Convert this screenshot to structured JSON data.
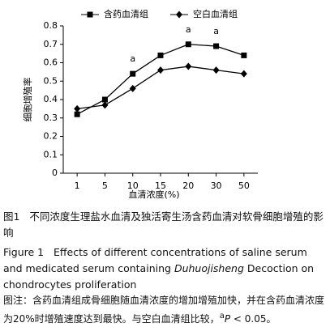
{
  "chart_data": {
    "type": "line",
    "y_label": "细胞增殖率",
    "x_label": "血清浓度(%)",
    "categories": [
      "1",
      "5",
      "10",
      "15",
      "20",
      "30",
      "50"
    ],
    "series": [
      {
        "name": "含药血清组",
        "color": "#000000",
        "marker": "square",
        "values": [
          0.32,
          0.4,
          0.54,
          0.64,
          0.7,
          0.69,
          0.64
        ]
      },
      {
        "name": "空白血清组",
        "color": "#000000",
        "marker": "diamond",
        "values": [
          0.35,
          0.37,
          0.46,
          0.56,
          0.58,
          0.56,
          0.54
        ]
      }
    ],
    "annotations": [
      {
        "text": "a",
        "category": "10"
      },
      {
        "text": "a",
        "category": "20"
      },
      {
        "text": "a",
        "category": "30"
      }
    ],
    "ylim": [
      0,
      0.8
    ],
    "yticks": [
      0,
      0.1,
      0.2,
      0.3,
      0.4,
      0.5,
      0.6,
      0.7,
      0.8
    ],
    "grid": false
  },
  "caption": {
    "cn_label": "图1",
    "cn_text": "不同浓度生理盐水血清及独活寄生汤含药血清对软骨细胞增殖的影响",
    "en_label": "Figure 1",
    "en_before": "Effects of different concentrations of saline serum and medicated serum containing",
    "en_italic": "Duhuojisheng",
    "en_after": "Decoction on chondrocytes proliferation",
    "note_text": "图注：含药血清组成骨细胞随血清浓度的增加增殖加快，并在含药血清浓度为20%时增殖速度达到最快。与空白血清组比较，",
    "note_sup": "a",
    "note_italic": "P",
    "note_tail": " < 0.05。"
  }
}
